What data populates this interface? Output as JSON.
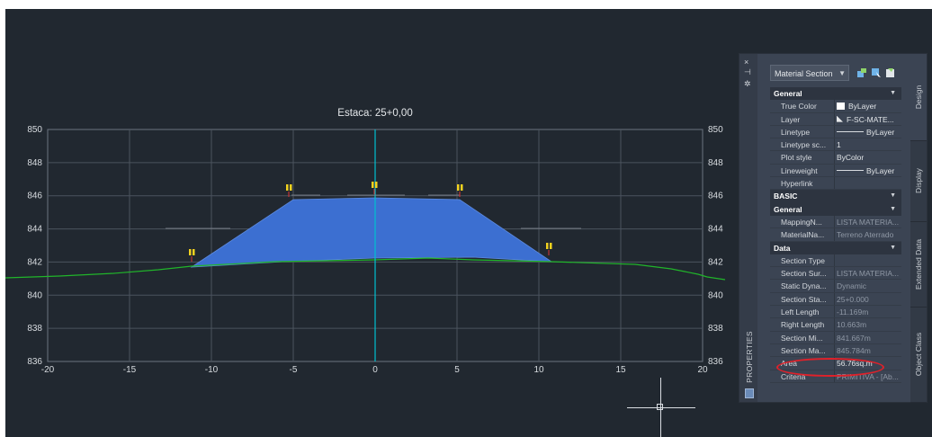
{
  "section_view": {
    "title": "Estaca: 25+0,00",
    "x_ticks": [
      "-20",
      "-15",
      "-10",
      "-5",
      "0",
      "5",
      "10",
      "15",
      "20"
    ],
    "y_ticks": [
      "850",
      "848",
      "846",
      "844",
      "842",
      "840",
      "838",
      "836"
    ],
    "colors": {
      "background": "#212830",
      "grid": "#4b535e",
      "material_fill": "#3c6fd1",
      "ground_line": "#21b52a",
      "centerline": "#00c0d0",
      "marker": "#f2d21f"
    }
  },
  "properties_palette": {
    "vertical_title": "PROPERTIES",
    "controls": {
      "close": "×",
      "pin": "⊣",
      "settings": "✲"
    },
    "object_type": "Material Section",
    "tabs": [
      "Design",
      "Display",
      "Extended Data",
      "Object Class"
    ],
    "groups": [
      {
        "title": "General",
        "rows": [
          {
            "name": "True Color",
            "value": "ByLayer"
          },
          {
            "name": "Layer",
            "value": "F-SC-MATE..."
          },
          {
            "name": "Linetype",
            "value": "ByLayer"
          },
          {
            "name": "Linetype sc...",
            "value": "1"
          },
          {
            "name": "Plot style",
            "value": "ByColor"
          },
          {
            "name": "Lineweight",
            "value": "ByLayer"
          },
          {
            "name": "Hyperlink",
            "value": ""
          }
        ]
      },
      {
        "title": "BASIC",
        "rows": []
      },
      {
        "title": "General",
        "rows": [
          {
            "name": "MappingN...",
            "value": "LISTA MATERIA..."
          },
          {
            "name": "MaterialNa...",
            "value": "Terreno Aterrado"
          }
        ]
      },
      {
        "title": "Data",
        "rows": [
          {
            "name": "Section Type",
            "value": ""
          },
          {
            "name": "Section Sur...",
            "value": "LISTA MATERIA..."
          },
          {
            "name": "Static Dyna...",
            "value": "Dynamic"
          },
          {
            "name": "Section Sta...",
            "value": "25+0.000"
          },
          {
            "name": "Left Length",
            "value": "-11.169m"
          },
          {
            "name": "Right Length",
            "value": "10.663m"
          },
          {
            "name": "Section Mi...",
            "value": "841.667m"
          },
          {
            "name": "Section Ma...",
            "value": "845.784m"
          },
          {
            "name": "Area",
            "value": "56.76sq.m"
          },
          {
            "name": "Criteria",
            "value": "PRIMITIVA - [Ab..."
          }
        ]
      }
    ]
  }
}
